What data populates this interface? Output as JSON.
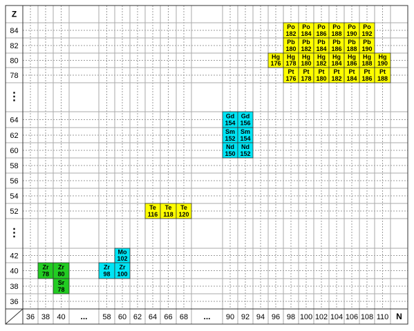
{
  "z_axis": [
    "Z",
    84,
    82,
    80,
    78,
    "⋮",
    64,
    62,
    60,
    58,
    56,
    54,
    52,
    "⋮",
    42,
    40,
    38,
    36
  ],
  "n_axis": [
    36,
    38,
    40,
    "...",
    58,
    60,
    62,
    64,
    66,
    68,
    "...",
    90,
    92,
    94,
    96,
    98,
    100,
    102,
    104,
    106,
    108,
    110,
    "N"
  ],
  "nuclides": [
    {
      "element": "Po",
      "mass": 182,
      "color": "#ffff00"
    },
    {
      "element": "Po",
      "mass": 184,
      "color": "#ffff00"
    },
    {
      "element": "Po",
      "mass": 186,
      "color": "#ffff00"
    },
    {
      "element": "Po",
      "mass": 188,
      "color": "#ffff00"
    },
    {
      "element": "Po",
      "mass": 190,
      "color": "#ffff00"
    },
    {
      "element": "Po",
      "mass": 192,
      "color": "#ffff00"
    },
    {
      "element": "Pb",
      "mass": 180,
      "color": "#ffff00"
    },
    {
      "element": "Pb",
      "mass": 182,
      "color": "#ffff00"
    },
    {
      "element": "Pb",
      "mass": 184,
      "color": "#ffff00"
    },
    {
      "element": "Pb",
      "mass": 186,
      "color": "#ffff00"
    },
    {
      "element": "Pb",
      "mass": 188,
      "color": "#ffff00"
    },
    {
      "element": "Pb",
      "mass": 190,
      "color": "#ffff00"
    },
    {
      "element": "Hg",
      "mass": 176,
      "color": "#ffff00"
    },
    {
      "element": "Hg",
      "mass": 178,
      "color": "#ffff00"
    },
    {
      "element": "Hg",
      "mass": 180,
      "color": "#ffff00"
    },
    {
      "element": "Hg",
      "mass": 182,
      "color": "#ffff00"
    },
    {
      "element": "Hg",
      "mass": 184,
      "color": "#ffff00"
    },
    {
      "element": "Hg",
      "mass": 186,
      "color": "#ffff00"
    },
    {
      "element": "Hg",
      "mass": 188,
      "color": "#ffff00"
    },
    {
      "element": "Hg",
      "mass": 190,
      "color": "#ffff00"
    },
    {
      "element": "Pt",
      "mass": 176,
      "color": "#ffff00"
    },
    {
      "element": "Pt",
      "mass": 178,
      "color": "#ffff00"
    },
    {
      "element": "Pt",
      "mass": 180,
      "color": "#ffff00"
    },
    {
      "element": "Pt",
      "mass": 182,
      "color": "#ffff00"
    },
    {
      "element": "Pt",
      "mass": 184,
      "color": "#ffff00"
    },
    {
      "element": "Pt",
      "mass": 186,
      "color": "#ffff00"
    },
    {
      "element": "Pt",
      "mass": 188,
      "color": "#ffff00"
    },
    {
      "element": "Gd",
      "mass": 154,
      "color": "#00e5f5"
    },
    {
      "element": "Gd",
      "mass": 156,
      "color": "#00e5f5"
    },
    {
      "element": "Sm",
      "mass": 152,
      "color": "#00e5f5"
    },
    {
      "element": "Sm",
      "mass": 154,
      "color": "#00e5f5"
    },
    {
      "element": "Nd",
      "mass": 150,
      "color": "#00e5f5"
    },
    {
      "element": "Nd",
      "mass": 152,
      "color": "#00e5f5"
    },
    {
      "element": "Te",
      "mass": 116,
      "color": "#ffff00"
    },
    {
      "element": "Te",
      "mass": 118,
      "color": "#ffff00"
    },
    {
      "element": "Te",
      "mass": 120,
      "color": "#ffff00"
    },
    {
      "element": "Mo",
      "mass": 102,
      "color": "#00e5f5"
    },
    {
      "element": "Zr",
      "mass": 98,
      "color": "#00e5f5"
    },
    {
      "element": "Zr",
      "mass": 100,
      "color": "#00e5f5"
    },
    {
      "element": "Zr",
      "mass": 78,
      "color": "#22cc22"
    },
    {
      "element": "Zr",
      "mass": 80,
      "color": "#22cc22"
    },
    {
      "element": "Sr",
      "mass": 78,
      "color": "#22cc22"
    }
  ]
}
